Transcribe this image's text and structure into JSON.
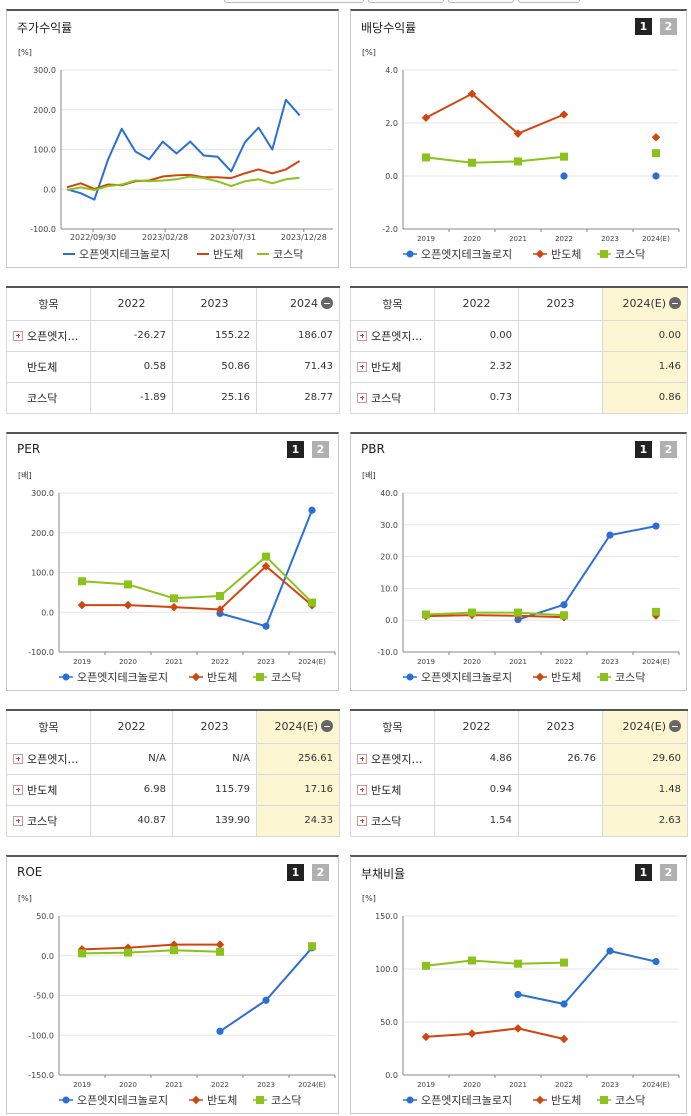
{
  "panels": [
    {
      "id": "ret",
      "title": "주가수익률",
      "unit": "[%]",
      "pager": false,
      "chart_data": {
        "type": "line",
        "title": "주가수익률",
        "ylim": [
          -100,
          300
        ],
        "yticks": [
          300,
          200,
          100,
          0,
          -100
        ],
        "x_labels": [
          "2022/09/30",
          "2023/02/28",
          "2023/07/31",
          "2023/12/28"
        ],
        "series": [
          {
            "name": "오픈엣지테크놀로지",
            "color": "#2a6fd6",
            "x": [
              0,
              1,
              2,
              3,
              4,
              5,
              6,
              7,
              8,
              9,
              10,
              11,
              12,
              13,
              14,
              15,
              16,
              17,
              18,
              19
            ],
            "values": [
              0,
              -10,
              -26,
              75,
              152,
              95,
              75,
              120,
              90,
              120,
              85,
              82,
              45,
              118,
              155,
              100,
              225,
              186,
              186,
              186
            ]
          },
          {
            "name": "반도체",
            "color": "#d2450f",
            "x": [
              0,
              1,
              2,
              3,
              4,
              5,
              6,
              7,
              8,
              9,
              10,
              11,
              12,
              13,
              14,
              15,
              16,
              17,
              18,
              19
            ],
            "values": [
              5,
              15,
              1,
              12,
              10,
              20,
              22,
              32,
              35,
              36,
              30,
              30,
              28,
              40,
              50,
              40,
              50,
              71,
              71,
              71
            ]
          },
          {
            "name": "코스닥",
            "color": "#8bc21c",
            "x": [
              0,
              1,
              2,
              3,
              4,
              5,
              6,
              7,
              8,
              9,
              10,
              11,
              12,
              13,
              14,
              15,
              16,
              17,
              18,
              19
            ],
            "values": [
              -2,
              5,
              -2,
              8,
              12,
              22,
              20,
              22,
              25,
              32,
              28,
              20,
              8,
              20,
              25,
              15,
              25,
              29,
              29,
              29
            ]
          }
        ]
      }
    },
    {
      "id": "div",
      "title": "배당수익률",
      "unit": "[%]",
      "pager": true,
      "chart_data": {
        "type": "line",
        "ylim": [
          -2,
          4
        ],
        "yticks": [
          "4.0",
          "2.0",
          "0.0",
          "-2.0"
        ],
        "categories": [
          "2019",
          "2020",
          "2021",
          "2022",
          "2023",
          "2024(E)"
        ],
        "series": [
          {
            "name": "오픈엣지테크놀로지",
            "color": "#2a6fd6",
            "values": [
              null,
              null,
              null,
              0.0,
              null,
              0.0
            ]
          },
          {
            "name": "반도체",
            "color": "#d2450f",
            "values": [
              2.2,
              3.1,
              1.6,
              2.32,
              null,
              1.46
            ]
          },
          {
            "name": "코스닥",
            "color": "#8bc21c",
            "values": [
              0.7,
              0.5,
              0.55,
              0.73,
              null,
              0.86
            ]
          }
        ]
      }
    },
    {
      "id": "per",
      "title": "PER",
      "unit": "[배]",
      "pager": true,
      "chart_data": {
        "type": "line",
        "ylim": [
          -100,
          300
        ],
        "yticks": [
          "300.0",
          "200.0",
          "100.0",
          "0.0",
          "-100.0"
        ],
        "categories": [
          "2019",
          "2020",
          "2021",
          "2022",
          "2023",
          "2024(E)"
        ],
        "series": [
          {
            "name": "오픈엣지테크놀로지",
            "color": "#2a6fd6",
            "values": [
              null,
              null,
              null,
              -3,
              -35,
              256.61
            ]
          },
          {
            "name": "반도체",
            "color": "#d2450f",
            "values": [
              18,
              18,
              13,
              6.98,
              115.79,
              17.16
            ]
          },
          {
            "name": "코스닥",
            "color": "#8bc21c",
            "values": [
              78,
              70,
              35,
              40.87,
              139.9,
              24.33
            ]
          }
        ]
      }
    },
    {
      "id": "pbr",
      "title": "PBR",
      "unit": "[배]",
      "pager": true,
      "chart_data": {
        "type": "line",
        "ylim": [
          -10,
          40
        ],
        "yticks": [
          "40.0",
          "30.0",
          "20.0",
          "10.0",
          "0.0",
          "-10.0"
        ],
        "categories": [
          "2019",
          "2020",
          "2021",
          "2022",
          "2023",
          "2024(E)"
        ],
        "series": [
          {
            "name": "오픈엣지테크놀로지",
            "color": "#2a6fd6",
            "values": [
              null,
              null,
              0.2,
              4.86,
              26.76,
              29.6
            ]
          },
          {
            "name": "반도체",
            "color": "#d2450f",
            "values": [
              1.3,
              1.6,
              1.4,
              0.94,
              null,
              1.48
            ]
          },
          {
            "name": "코스닥",
            "color": "#8bc21c",
            "values": [
              1.8,
              2.4,
              2.4,
              1.54,
              null,
              2.63
            ]
          }
        ]
      }
    },
    {
      "id": "roe",
      "title": "ROE",
      "unit": "[%]",
      "pager": true,
      "chart_data": {
        "type": "line",
        "ylim": [
          -150,
          50
        ],
        "yticks": [
          "50.0",
          "0.0",
          "-50.0",
          "-100.0",
          "-150.0"
        ],
        "categories": [
          "2019",
          "2020",
          "2021",
          "2022",
          "2023",
          "2024(E)"
        ],
        "series": [
          {
            "name": "오픈엣지테크놀로지",
            "color": "#2a6fd6",
            "values": [
              null,
              null,
              null,
              -95,
              -56,
              10
            ]
          },
          {
            "name": "반도체",
            "color": "#d2450f",
            "values": [
              8,
              10,
              14,
              14,
              null,
              11
            ]
          },
          {
            "name": "코스닥",
            "color": "#8bc21c",
            "values": [
              3,
              4,
              7,
              5,
              null,
              12
            ]
          }
        ]
      }
    },
    {
      "id": "debt",
      "title": "부채비율",
      "unit": "[%]",
      "pager": true,
      "chart_data": {
        "type": "line",
        "ylim": [
          0,
          150
        ],
        "yticks": [
          "150.0",
          "100.0",
          "50.0",
          "0.0"
        ],
        "categories": [
          "2019",
          "2020",
          "2021",
          "2022",
          "2023",
          "2024(E)"
        ],
        "series": [
          {
            "name": "오픈엣지테크놀로지",
            "color": "#2a6fd6",
            "values": [
              null,
              null,
              76,
              67,
              117,
              107
            ]
          },
          {
            "name": "반도체",
            "color": "#d2450f",
            "values": [
              36,
              39,
              44,
              34,
              null,
              null
            ]
          },
          {
            "name": "코스닥",
            "color": "#8bc21c",
            "values": [
              103,
              108,
              105,
              106,
              null,
              null
            ]
          }
        ]
      }
    }
  ],
  "tables": [
    {
      "id": "t_ret",
      "header": [
        "항목",
        "2022",
        "2023",
        "2024"
      ],
      "hl": false,
      "minus": true,
      "rows": [
        [
          "오픈엣지…",
          "-26.27",
          "155.22",
          "186.07"
        ],
        [
          "반도체",
          "0.58",
          "50.86",
          "71.43"
        ],
        [
          "코스닥",
          "-1.89",
          "25.16",
          "28.77"
        ]
      ],
      "plus": [
        true,
        false,
        false
      ]
    },
    {
      "id": "t_div",
      "header": [
        "항목",
        "2022",
        "2023",
        "2024(E)"
      ],
      "hl": true,
      "minus": true,
      "rows": [
        [
          "오픈엣지…",
          "0.00",
          "",
          "0.00"
        ],
        [
          "반도체",
          "2.32",
          "",
          "1.46"
        ],
        [
          "코스닥",
          "0.73",
          "",
          "0.86"
        ]
      ],
      "plus": [
        true,
        true,
        true
      ]
    },
    {
      "id": "t_per",
      "header": [
        "항목",
        "2022",
        "2023",
        "2024(E)"
      ],
      "hl": true,
      "minus": true,
      "rows": [
        [
          "오픈엣지…",
          "N/A",
          "N/A",
          "256.61"
        ],
        [
          "반도체",
          "6.98",
          "115.79",
          "17.16"
        ],
        [
          "코스닥",
          "40.87",
          "139.90",
          "24.33"
        ]
      ],
      "plus": [
        true,
        true,
        true
      ]
    },
    {
      "id": "t_pbr",
      "header": [
        "항목",
        "2022",
        "2023",
        "2024(E)"
      ],
      "hl": true,
      "minus": true,
      "rows": [
        [
          "오픈엣지…",
          "4.86",
          "26.76",
          "29.60"
        ],
        [
          "반도체",
          "0.94",
          "",
          "1.48"
        ],
        [
          "코스닥",
          "1.54",
          "",
          "2.63"
        ]
      ],
      "plus": [
        true,
        true,
        true
      ]
    }
  ],
  "legend": [
    "오픈엣지테크놀로지",
    "반도체",
    "코스닥"
  ],
  "pager_labels": [
    "1",
    "2"
  ]
}
